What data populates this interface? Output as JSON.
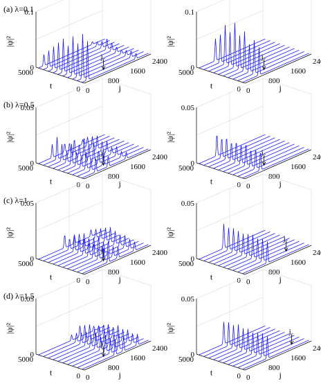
{
  "figure": {
    "rows": [
      {
        "label": "(a) λ=0.1"
      },
      {
        "label": "(b) λ=0.5"
      },
      {
        "label": "(c) λ=1"
      },
      {
        "label": "(d) λ=1.5"
      }
    ],
    "axis_text": {
      "ylabel": "|ψ|²",
      "tlabel": "t",
      "jlabel": "j",
      "z_ticks_first": [
        "0.1",
        "0"
      ],
      "z_ticks": [
        "0.05",
        "0"
      ],
      "t_tick": "5000",
      "j_ticks": [
        "0",
        "800",
        "1600",
        "2400"
      ],
      "t_zero": "0",
      "jc": "jc"
    }
  },
  "chart_data": [
    {
      "type": "line",
      "panel": "a-left",
      "row_label": "(a) λ=0.1",
      "xlabel": "j",
      "ylabel": "|ψ|²",
      "tlabel": "t",
      "xlim": [
        0,
        2400
      ],
      "tlim": [
        0,
        5000
      ],
      "zlim": [
        0,
        0.1
      ],
      "jc": 900,
      "series": [
        {
          "peaks": [
            {
              "j": 200,
              "amp": [
                0.02,
                0.03,
                0.04,
                0.05,
                0.06,
                0.05,
                0.07,
                0.06,
                0.08,
                0.07
              ]
            },
            {
              "j": 1950,
              "amp": [
                0.005,
                0.008,
                0.012,
                0.02,
                0.015,
                0.01,
                0.008,
                0.01,
                0.012,
                0.01
              ]
            }
          ]
        }
      ]
    },
    {
      "type": "line",
      "panel": "a-right",
      "xlabel": "j",
      "ylabel": "|ψ|²",
      "tlabel": "t",
      "xlim": [
        0,
        2400
      ],
      "tlim": [
        0,
        5000
      ],
      "zlim": [
        0,
        0.1
      ],
      "jc": 900,
      "series": [
        {
          "peaks": [
            {
              "j": 600,
              "amp": [
                0.04,
                0.05,
                0.07,
                0.06,
                0.08,
                0.06,
                0.07,
                0.05,
                0.06,
                0.05
              ]
            }
          ]
        }
      ]
    },
    {
      "type": "line",
      "panel": "b-left",
      "row_label": "(b) λ=0.5",
      "xlabel": "j",
      "ylabel": "|ψ|²",
      "tlabel": "t",
      "xlim": [
        0,
        2400
      ],
      "tlim": [
        0,
        5000
      ],
      "zlim": [
        0,
        0.05
      ],
      "jc": 900,
      "series": [
        {
          "peaks": [
            {
              "j": 500,
              "amp": [
                0.012,
                0.02,
                0.015,
                0.01,
                0.018,
                0.012,
                0.01,
                0.015,
                0.01,
                0.012
              ]
            },
            {
              "j": 950,
              "amp": [
                0.008,
                0.01,
                0.015,
                0.012,
                0.02,
                0.015,
                0.018,
                0.012,
                0.015,
                0.01
              ]
            },
            {
              "j": 1600,
              "amp": [
                0.004,
                0.008,
                0.01,
                0.012,
                0.008,
                0.01,
                0.006,
                0.008,
                0.005,
                0.006
              ]
            }
          ]
        }
      ]
    },
    {
      "type": "line",
      "panel": "b-right",
      "xlabel": "j",
      "ylabel": "|ψ|²",
      "tlabel": "t",
      "xlim": [
        0,
        2400
      ],
      "tlim": [
        0,
        5000
      ],
      "zlim": [
        0,
        0.05
      ],
      "jc": 900,
      "series": [
        {
          "peaks": [
            {
              "j": 650,
              "amp": [
                0.02,
                0.018,
                0.02,
                0.017,
                0.019,
                0.018,
                0.02,
                0.016,
                0.018,
                0.017
              ]
            }
          ]
        }
      ]
    },
    {
      "type": "line",
      "panel": "c-left",
      "row_label": "(c) λ=1",
      "xlabel": "j",
      "ylabel": "|ψ|²",
      "tlabel": "t",
      "xlim": [
        0,
        2400
      ],
      "tlim": [
        0,
        5000
      ],
      "zlim": [
        0,
        0.05
      ],
      "jc": 900,
      "series": [
        {
          "peaks": [
            {
              "j": 950,
              "amp": [
                0.012,
                0.01,
                0.014,
                0.012,
                0.015,
                0.012,
                0.013,
                0.01,
                0.012,
                0.01
              ]
            },
            {
              "j": 1300,
              "amp": [
                0.008,
                0.01,
                0.012,
                0.009,
                0.011,
                0.013,
                0.01,
                0.012,
                0.009,
                0.01
              ]
            },
            {
              "j": 1900,
              "amp": [
                0.006,
                0.008,
                0.01,
                0.012,
                0.014,
                0.012,
                0.01,
                0.011,
                0.009,
                0.008
              ]
            }
          ]
        }
      ]
    },
    {
      "type": "line",
      "panel": "c-right",
      "xlabel": "j",
      "ylabel": "|ψ|²",
      "tlabel": "t",
      "xlim": [
        0,
        2400
      ],
      "tlim": [
        0,
        5000
      ],
      "zlim": [
        0,
        0.05
      ],
      "jc": 1700,
      "series": [
        {
          "peaks": [
            {
              "j": 900,
              "amp": [
                0.022,
                0.02,
                0.021,
                0.02,
                0.019,
                0.02,
                0.021,
                0.019,
                0.02,
                0.019
              ]
            }
          ]
        }
      ]
    },
    {
      "type": "line",
      "panel": "d-left",
      "row_label": "(d) λ=1.5",
      "xlabel": "j",
      "ylabel": "|ψ|²",
      "tlabel": "t",
      "xlim": [
        0,
        2400
      ],
      "tlim": [
        0,
        5000
      ],
      "zlim": [
        0,
        0.05
      ],
      "jc": 900,
      "series": [
        {
          "peaks": [
            {
              "j": 1200,
              "amp": [
                0.005,
                0.008,
                0.01,
                0.012,
                0.01,
                0.014,
                0.012,
                0.015,
                0.013,
                0.014
              ]
            },
            {
              "j": 1500,
              "amp": [
                0.01,
                0.012,
                0.014,
                0.011,
                0.015,
                0.013,
                0.016,
                0.012,
                0.014,
                0.013
              ]
            },
            {
              "j": 2000,
              "amp": [
                0.004,
                0.006,
                0.008,
                0.01,
                0.009,
                0.012,
                0.01,
                0.011,
                0.009,
                0.01
              ]
            }
          ]
        }
      ]
    },
    {
      "type": "line",
      "panel": "d-right",
      "xlabel": "j",
      "ylabel": "|ψ|²",
      "tlabel": "t",
      "xlim": [
        0,
        2400
      ],
      "tlim": [
        0,
        5000
      ],
      "zlim": [
        0,
        0.05
      ],
      "jc": 1900,
      "series": [
        {
          "peaks": [
            {
              "j": 900,
              "amp": [
                0.02,
                0.021,
                0.02,
                0.022,
                0.02,
                0.021,
                0.019,
                0.02,
                0.021,
                0.02
              ]
            }
          ]
        }
      ]
    }
  ],
  "colors": {
    "curve": "#1a1aff",
    "axis": "#000000",
    "grid": "#d8d8d8"
  }
}
